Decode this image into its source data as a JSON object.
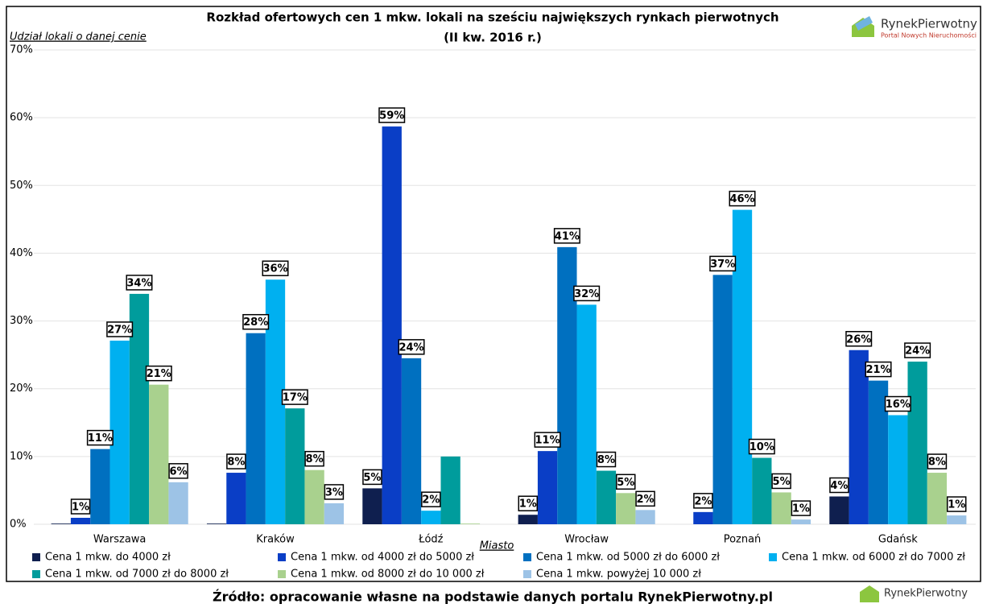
{
  "chart_data": {
    "type": "bar",
    "title": [
      "Rozkład ofertowych cen 1 mkw. lokali na sześciu największych rynkach pierwotnych",
      "(II kw. 2016 r.)"
    ],
    "y_label": "Udział lokali o danej cenie",
    "x_label": "Miasto",
    "source": "Źródło: opracowanie własne na podstawie danych portalu RynekPierwotny.pl",
    "logo": [
      "RynekPierwotny",
      "Portal Nowych Nieruchomości"
    ],
    "categories": [
      "Warszawa",
      "Kraków",
      "Łódź",
      "Wrocław",
      "Poznań",
      "Gdańsk"
    ],
    "ylim": [
      0,
      70
    ],
    "yticks": [
      {
        "value": 0,
        "label": "0%"
      },
      {
        "value": 10,
        "label": "10%"
      },
      {
        "value": 20,
        "label": "20%"
      },
      {
        "value": 30,
        "label": "30%"
      },
      {
        "value": 40,
        "label": "40%"
      },
      {
        "value": 50,
        "label": "50%"
      },
      {
        "value": 60,
        "label": "60%"
      },
      {
        "value": 70,
        "label": "70%"
      }
    ],
    "grid": true,
    "legend": "bottom",
    "series": [
      {
        "name": "Cena 1 mkw. do 4000 zł",
        "color": "#0f1f4f",
        "values": [
          0.1,
          0.1,
          5.3,
          1.4,
          0,
          4.1
        ],
        "value_labels": [
          null,
          null,
          "5%",
          "1%",
          null,
          "4%"
        ]
      },
      {
        "name": "Cena 1 mkw. od 4000 zł do 5000 zł",
        "color": "#0a3ec6",
        "values": [
          0.95,
          7.6,
          58.7,
          10.8,
          1.8,
          25.7
        ],
        "value_labels": [
          "1%",
          "8%",
          "59%",
          "11%",
          "2%",
          "26%"
        ]
      },
      {
        "name": "Cena 1 mkw. od 5000 zł do 6000 zł",
        "color": "#0070c0",
        "values": [
          11.1,
          28.2,
          24.5,
          40.9,
          36.8,
          21.2
        ],
        "value_labels": [
          "11%",
          "28%",
          "24%",
          "41%",
          "37%",
          "21%"
        ]
      },
      {
        "name": "Cena 1 mkw. od 6000 zł do 7000 zł",
        "color": "#00b0f0",
        "values": [
          27.1,
          36.1,
          2.0,
          32.4,
          46.4,
          16.1
        ],
        "value_labels": [
          "27%",
          "36%",
          "2%",
          "32%",
          "46%",
          "16%"
        ]
      },
      {
        "name": "Cena 1 mkw. od 7000 zł do 8000 zł",
        "color": "#009c9c",
        "values": [
          34.0,
          17.1,
          10.0,
          7.9,
          9.8,
          24.0
        ],
        "value_labels": [
          "34%",
          "17%",
          null,
          "8%",
          "10%",
          "24%"
        ]
      },
      {
        "name": "Cena 1 mkw. od 8000 zł do 10 000 zł",
        "color": "#a9d18e",
        "values": [
          20.6,
          8.0,
          0.1,
          4.6,
          4.7,
          7.6
        ],
        "value_labels": [
          "21%",
          "8%",
          null,
          "5%",
          "5%",
          "8%"
        ]
      },
      {
        "name": "Cena 1 mkw. powyżej 10 000 zł",
        "color": "#9dc3e6",
        "values": [
          6.2,
          3.1,
          0,
          2.1,
          0.7,
          1.3
        ],
        "value_labels": [
          "6%",
          "3%",
          null,
          "2%",
          "1%",
          "1%"
        ]
      }
    ]
  }
}
